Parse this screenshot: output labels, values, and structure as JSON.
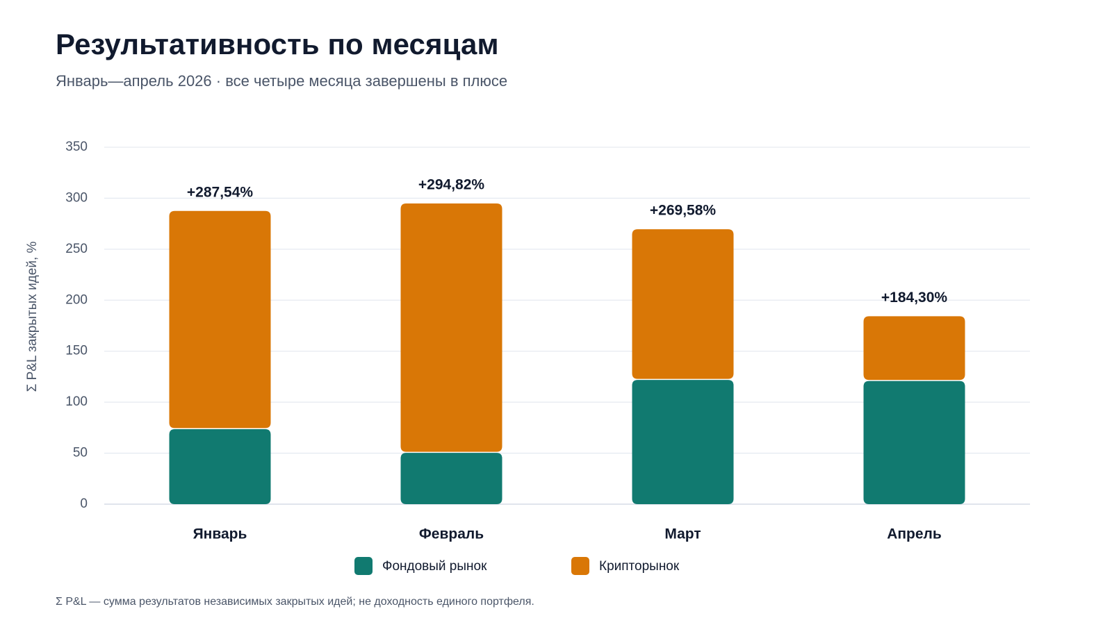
{
  "header": {
    "title": "Результативность по месяцам",
    "subtitle": "Январь—апрель 2026 · все четыре месяца завершены в плюсе"
  },
  "footnote": "Σ P&L — сумма результатов независимых закрытых идей; не доходность единого портфеля.",
  "chart_data": {
    "type": "bar",
    "stacked": true,
    "title": "Результативность по месяцам",
    "subtitle": "Январь—апрель 2026 · все четыре месяца завершены в плюсе",
    "xlabel": "",
    "ylabel": "Σ P&L закрытых идей, %",
    "ylim": [
      0,
      350
    ],
    "yticks": [
      0,
      50,
      100,
      150,
      200,
      250,
      300,
      350
    ],
    "grid": true,
    "legend": "bottom-center",
    "categories": [
      "Январь",
      "Февраль",
      "Март",
      "Апрель"
    ],
    "series": [
      {
        "name": "Фондовый рынок",
        "color": "#117a70",
        "values": [
          73.5,
          50.3,
          121.8,
          120.8
        ]
      },
      {
        "name": "Крипторынок",
        "color": "#d97706",
        "values": [
          214.04,
          244.52,
          147.78,
          63.5
        ]
      }
    ],
    "totals": [
      287.54,
      294.82,
      269.58,
      184.3
    ],
    "total_labels": [
      "+287,54%",
      "+294,82%",
      "+269,58%",
      "+184,30%"
    ]
  }
}
